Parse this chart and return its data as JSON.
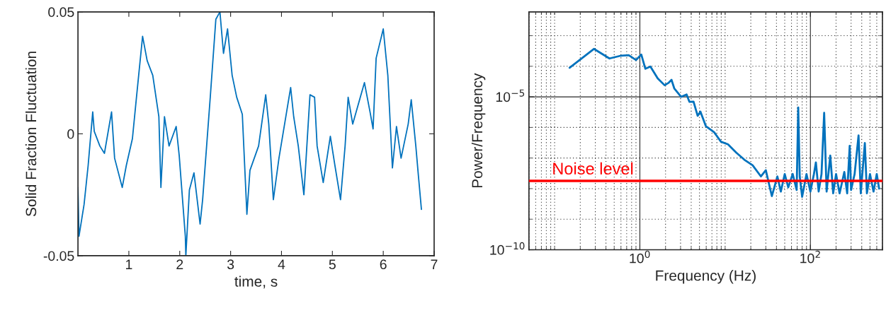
{
  "chart_data": [
    {
      "type": "line",
      "xlabel": "time, s",
      "ylabel": "Solid Fraction Fluctuation",
      "xlim": [
        0,
        7
      ],
      "xticks": [
        1,
        2,
        3,
        4,
        5,
        6,
        7
      ],
      "ylim": [
        -0.05,
        0.05
      ],
      "yticks": [
        {
          "value": -0.05,
          "label": "-0.05"
        },
        0,
        0.05
      ],
      "grid": false,
      "legend": false,
      "marker": "none",
      "line_style": "solid",
      "series": [
        {
          "color": "#0072bd",
          "x": [
            0.0,
            0.02,
            0.12,
            0.2,
            0.29,
            0.32,
            0.43,
            0.52,
            0.66,
            0.72,
            0.87,
            0.95,
            1.07,
            1.15,
            1.27,
            1.36,
            1.47,
            1.59,
            1.63,
            1.7,
            1.79,
            1.93,
            1.99,
            2.11,
            2.12,
            2.19,
            2.28,
            2.4,
            2.45,
            2.6,
            2.71,
            2.79,
            2.86,
            2.94,
            3.03,
            3.12,
            3.23,
            3.32,
            3.38,
            3.55,
            3.69,
            3.75,
            3.84,
            3.95,
            4.18,
            4.24,
            4.33,
            4.44,
            4.56,
            4.65,
            4.7,
            4.82,
            4.96,
            5.05,
            5.16,
            5.25,
            5.31,
            5.4,
            5.63,
            5.74,
            5.8,
            5.86,
            6.0,
            6.09,
            6.18,
            6.26,
            6.35,
            6.49,
            6.55,
            6.64,
            6.69,
            6.75
          ],
          "values": [
            -0.022,
            -0.042,
            -0.029,
            -0.013,
            0.009,
            0.001,
            -0.005,
            -0.008,
            0.009,
            -0.01,
            -0.022,
            -0.013,
            -0.002,
            0.015,
            0.04,
            0.03,
            0.024,
            0.007,
            -0.022,
            0.007,
            -0.005,
            0.003,
            -0.009,
            -0.042,
            -0.05,
            -0.023,
            -0.016,
            -0.037,
            -0.027,
            0.015,
            0.047,
            0.05,
            0.033,
            0.043,
            0.024,
            0.015,
            0.008,
            -0.033,
            -0.015,
            -0.005,
            0.016,
            0.004,
            -0.027,
            -0.01,
            0.019,
            0.007,
            -0.005,
            -0.025,
            0.016,
            0.015,
            -0.005,
            -0.02,
            -0.001,
            -0.013,
            -0.027,
            -0.005,
            0.015,
            0.004,
            0.021,
            0.009,
            0.002,
            0.031,
            0.043,
            0.024,
            -0.014,
            0.003,
            -0.01,
            0.004,
            0.014,
            -0.005,
            -0.017,
            -0.031
          ]
        }
      ]
    },
    {
      "type": "line",
      "xlabel": "Frequency (Hz)",
      "ylabel": "Power/Frequency",
      "log": "xy",
      "xlim": [
        0.05,
        700
      ],
      "xticks": [
        {
          "value": 1,
          "label": "10$^{0}$"
        },
        {
          "value": 100,
          "label": "10$^{2}$"
        }
      ],
      "ylim": [
        1e-10,
        0.006
      ],
      "yticks": [
        {
          "value": 1e-10,
          "label": "10$^{−10}$"
        },
        {
          "value": 1e-05,
          "label": "10$^{−5}$"
        }
      ],
      "grid": true,
      "legend": false,
      "marker": "none",
      "line_style": "solid",
      "ref_lines": [
        {
          "axis": "y",
          "value": 1.8e-08,
          "label": "Noise level",
          "color": "#ff0000"
        }
      ],
      "series": [
        {
          "color": "#0072bd",
          "x": [
            0.15,
            0.29,
            0.44,
            0.59,
            0.74,
            0.9,
            1.04,
            1.16,
            1.33,
            1.62,
            1.95,
            2.18,
            2.35,
            2.53,
            3.05,
            3.53,
            3.81,
            4.26,
            4.76,
            5.13,
            5.94,
            7.43,
            8.95,
            10.8,
            13.5,
            16.8,
            21,
            26.3,
            30,
            35.3,
            41,
            45,
            50,
            55,
            62,
            69,
            72,
            75,
            80,
            90,
            100,
            110,
            116,
            125,
            135,
            145,
            155,
            171,
            185,
            200,
            220,
            250,
            270,
            289,
            300,
            330,
            367,
            390,
            435,
            460,
            500,
            550,
            600,
            640
          ],
          "values": [
            9e-05,
            0.00037,
            0.00018,
            0.00022,
            0.00023,
            0.00016,
            0.00024,
            8.3e-05,
            9.8e-05,
            4e-05,
            2.4e-05,
            2.9e-05,
            3.6e-05,
            1.9e-05,
            1e-05,
            1.2e-05,
            6.9e-06,
            7e-06,
            2.4e-06,
            3.3e-06,
            1.1e-06,
            7e-07,
            3.4e-07,
            2.8e-07,
            1.5e-07,
            8.8e-08,
            5.8e-08,
            2.5e-08,
            4e-08,
            5.7e-09,
            2.5e-08,
            8e-09,
            3e-08,
            1.1e-08,
            3e-08,
            9e-09,
            4.5e-06,
            2.5e-08,
            5.4e-09,
            3e-08,
            8e-09,
            3e-08,
            7.2e-08,
            8e-09,
            3e-08,
            3e-06,
            8e-09,
            1.2e-07,
            7e-09,
            3e-08,
            7e-09,
            3.5e-08,
            7e-09,
            2.5e-07,
            9e-09,
            3e-08,
            5.5e-07,
            7e-09,
            3.1e-07,
            7e-09,
            3e-08,
            8e-09,
            3e-08,
            1e-08
          ]
        }
      ]
    }
  ]
}
